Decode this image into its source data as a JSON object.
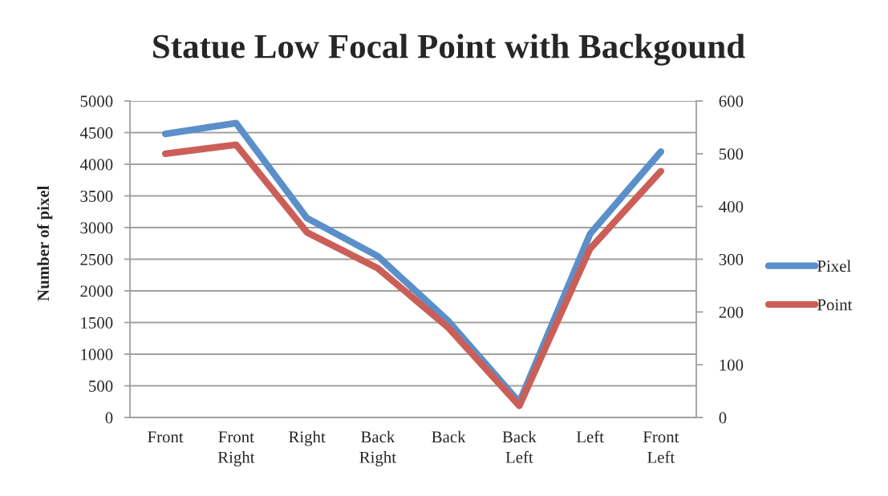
{
  "chart_data": {
    "type": "line",
    "title": "Statue Low Focal Point with Backgound",
    "ylabel": "Number of pixel",
    "categories": [
      "Front",
      "Front Right",
      "Right",
      "Back Right",
      "Back",
      "Back Left",
      "Left",
      "Front Left"
    ],
    "series": [
      {
        "name": "Pixel",
        "color": "#5b8fc9",
        "axis": "y",
        "values": [
          4480,
          4650,
          3150,
          2550,
          1520,
          240,
          2900,
          4200
        ]
      },
      {
        "name": "Point",
        "color": "#cb5f58",
        "axis": "y2",
        "values": [
          500,
          517,
          351,
          283,
          170,
          22,
          320,
          467
        ]
      }
    ],
    "ylim": [
      0,
      5000
    ],
    "yticks": [
      0,
      500,
      1000,
      1500,
      2000,
      2500,
      3000,
      3500,
      4000,
      4500,
      5000
    ],
    "y2lim": [
      0,
      600
    ],
    "y2ticks": [
      0,
      100,
      200,
      300,
      400,
      500,
      600
    ],
    "grid": "y",
    "legend": "right",
    "marker": "none",
    "line_style": "solid"
  }
}
